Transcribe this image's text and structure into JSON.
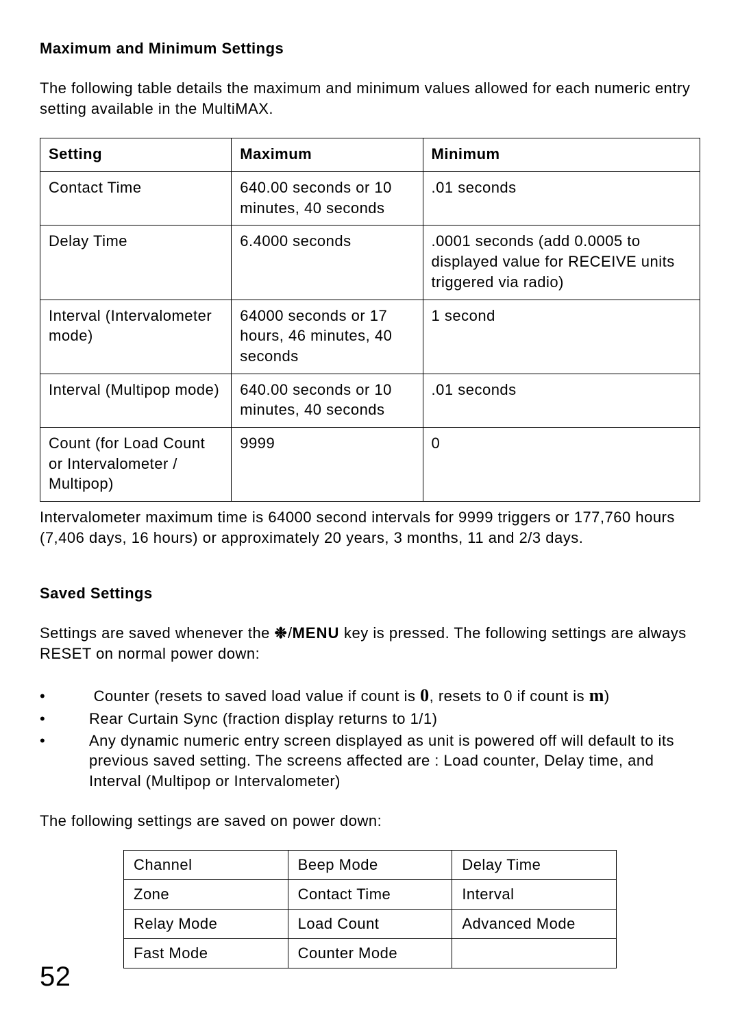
{
  "heading1": "Maximum and Minimum Settings",
  "intro": "The following table details the maximum and minimum values allowed for each numeric entry setting available in the MultiMAX.",
  "table1": {
    "headers": [
      "Setting",
      "Maximum",
      "Minimum"
    ],
    "rows": [
      {
        "setting": "Contact Time",
        "max": "640.00 seconds or 10 minutes, 40 seconds",
        "min": ".01 seconds"
      },
      {
        "setting": "Delay Time",
        "max": "6.4000 seconds",
        "min": ".0001 seconds (add 0.0005 to displayed value for RECEIVE units triggered via radio)"
      },
      {
        "setting": "Interval (Intervalometer mode)",
        "max": "64000 seconds or 17 hours, 46 minutes, 40 seconds",
        "min": "1 second"
      },
      {
        "setting": "Interval (Multipop mode)",
        "max": "640.00 seconds or 10 minutes, 40 seconds",
        "min": ".01 seconds"
      },
      {
        "setting": "Count (for Load Count or Intervalometer / Multipop)",
        "max": "9999",
        "min": "0"
      }
    ]
  },
  "note": "Intervalometer maximum time is 64000 second intervals for 9999 triggers or 177,760 hours (7,406 days, 16 hours) or approximately 20 years, 3 months, 11 and 2/3 days.",
  "heading2": "Saved Settings",
  "para2_a": "Settings are saved whenever the ",
  "para2_star": "❉",
  "para2_slash": "/",
  "para2_menu": "MENU",
  "para2_b": " key is pressed.  The following settings are always RESET on normal power down:",
  "bullets": {
    "b1_a": "Counter (resets to saved load value if count is ",
    "b1_sym1": "0",
    "b1_b": ", resets to 0 if count is ",
    "b1_sym2": "m",
    "b1_c": ")",
    "b2": "Rear Curtain Sync (fraction display returns to 1/1)",
    "b3": "Any dynamic numeric entry screen displayed as unit is powered off will default to its previous saved setting.  The screens affected are : Load counter, Delay time, and Interval (Multipop or Intervalometer)"
  },
  "para3": "The following settings are saved on power down:",
  "saved_table": [
    [
      "Channel",
      "Beep Mode",
      "Delay Time"
    ],
    [
      "Zone",
      "Contact Time",
      "Interval"
    ],
    [
      "Relay Mode",
      "Load Count",
      "Advanced Mode"
    ],
    [
      "Fast Mode",
      "Counter Mode",
      ""
    ]
  ],
  "page_number": "52"
}
